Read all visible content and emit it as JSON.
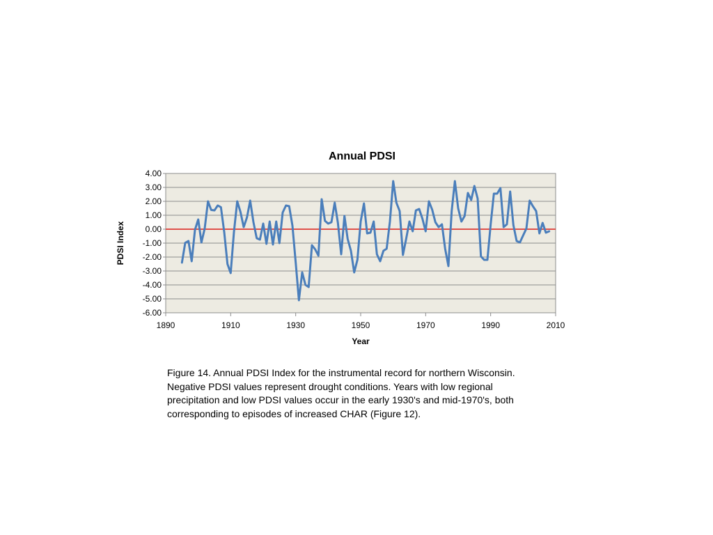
{
  "chart_data": {
    "type": "line",
    "title": "Annual PDSI",
    "xlabel": "Year",
    "ylabel": "PDSI Index",
    "xlim": [
      1890,
      2010
    ],
    "ylim": [
      -6,
      4
    ],
    "x_ticks": [
      1890,
      1910,
      1930,
      1950,
      1970,
      1990,
      2010
    ],
    "y_ticks": [
      -6,
      -5,
      -4,
      -3,
      -2,
      -1,
      0,
      1,
      2,
      3,
      4
    ],
    "y_tick_labels": [
      "-6.00",
      "-5.00",
      "-4.00",
      "-3.00",
      "-2.00",
      "-1.00",
      "0.00",
      "1.00",
      "2.00",
      "3.00",
      "4.00"
    ],
    "x_tick_labels": [
      "1890",
      "1910",
      "1930",
      "1950",
      "1970",
      "1990",
      "2010"
    ],
    "grid": true,
    "reference_line": {
      "y": 0,
      "color": "#e0504a"
    },
    "series": [
      {
        "color": "#4a7ebb",
        "x": [
          1895,
          1896,
          1897,
          1898,
          1899,
          1900,
          1901,
          1902,
          1903,
          1904,
          1905,
          1906,
          1907,
          1908,
          1909,
          1910,
          1911,
          1912,
          1913,
          1914,
          1915,
          1916,
          1917,
          1918,
          1919,
          1920,
          1921,
          1922,
          1923,
          1924,
          1925,
          1926,
          1927,
          1928,
          1929,
          1930,
          1931,
          1932,
          1933,
          1934,
          1935,
          1936,
          1937,
          1938,
          1939,
          1940,
          1941,
          1942,
          1943,
          1944,
          1945,
          1946,
          1947,
          1948,
          1949,
          1950,
          1951,
          1952,
          1953,
          1954,
          1955,
          1956,
          1957,
          1958,
          1959,
          1960,
          1961,
          1962,
          1963,
          1964,
          1965,
          1966,
          1967,
          1968,
          1969,
          1970,
          1971,
          1972,
          1973,
          1974,
          1975,
          1976,
          1977,
          1978,
          1979,
          1980,
          1981,
          1982,
          1983,
          1984,
          1985,
          1986,
          1987,
          1988,
          1989,
          1990,
          1991,
          1992,
          1993,
          1994,
          1995,
          1996,
          1997,
          1998,
          1999,
          2000,
          2001,
          2002,
          2003,
          2004,
          2005,
          2006,
          2007,
          2008
        ],
        "values": [
          -2.4,
          -0.98,
          -0.85,
          -2.3,
          -0.05,
          0.7,
          -0.95,
          0.05,
          2.0,
          1.38,
          1.35,
          1.7,
          1.58,
          -0.2,
          -2.5,
          -3.15,
          -0.2,
          2.0,
          1.25,
          0.15,
          0.85,
          2.05,
          0.5,
          -0.65,
          -0.75,
          0.4,
          -1.05,
          0.55,
          -1.1,
          0.55,
          -1.0,
          1.2,
          1.7,
          1.65,
          0.25,
          -2.4,
          -5.1,
          -3.1,
          -4.0,
          -4.15,
          -1.15,
          -1.45,
          -1.9,
          2.15,
          0.6,
          0.4,
          0.5,
          1.9,
          0.45,
          -1.8,
          0.95,
          -0.7,
          -1.55,
          -3.1,
          -2.2,
          0.55,
          1.85,
          -0.3,
          -0.25,
          0.55,
          -1.8,
          -2.3,
          -1.55,
          -1.4,
          0.55,
          3.45,
          1.9,
          1.3,
          -1.85,
          -0.7,
          0.55,
          -0.15,
          1.35,
          1.45,
          0.75,
          -0.15,
          2.0,
          1.4,
          0.5,
          0.15,
          0.35,
          -1.4,
          -2.65,
          1.3,
          3.45,
          1.5,
          0.55,
          0.95,
          2.6,
          2.1,
          3.1,
          2.2,
          -1.95,
          -2.2,
          -2.2,
          0.35,
          2.55,
          2.55,
          2.95,
          0.15,
          0.35,
          2.7,
          0.3,
          -0.85,
          -0.95,
          -0.45,
          0.05,
          2.05,
          1.65,
          1.3,
          -0.3,
          0.45,
          -0.25,
          -0.15
        ]
      }
    ]
  },
  "caption": {
    "lines": [
      "Figure 14.  Annual PDSI Index for the instrumental record for northern Wisconsin.",
      "Negative PDSI values represent drought conditions.  Years with low regional",
      "precipitation and low PDSI values occur in the early 1930's and mid-1970's, both",
      "corresponding to episodes of increased CHAR (Figure 12)."
    ]
  }
}
